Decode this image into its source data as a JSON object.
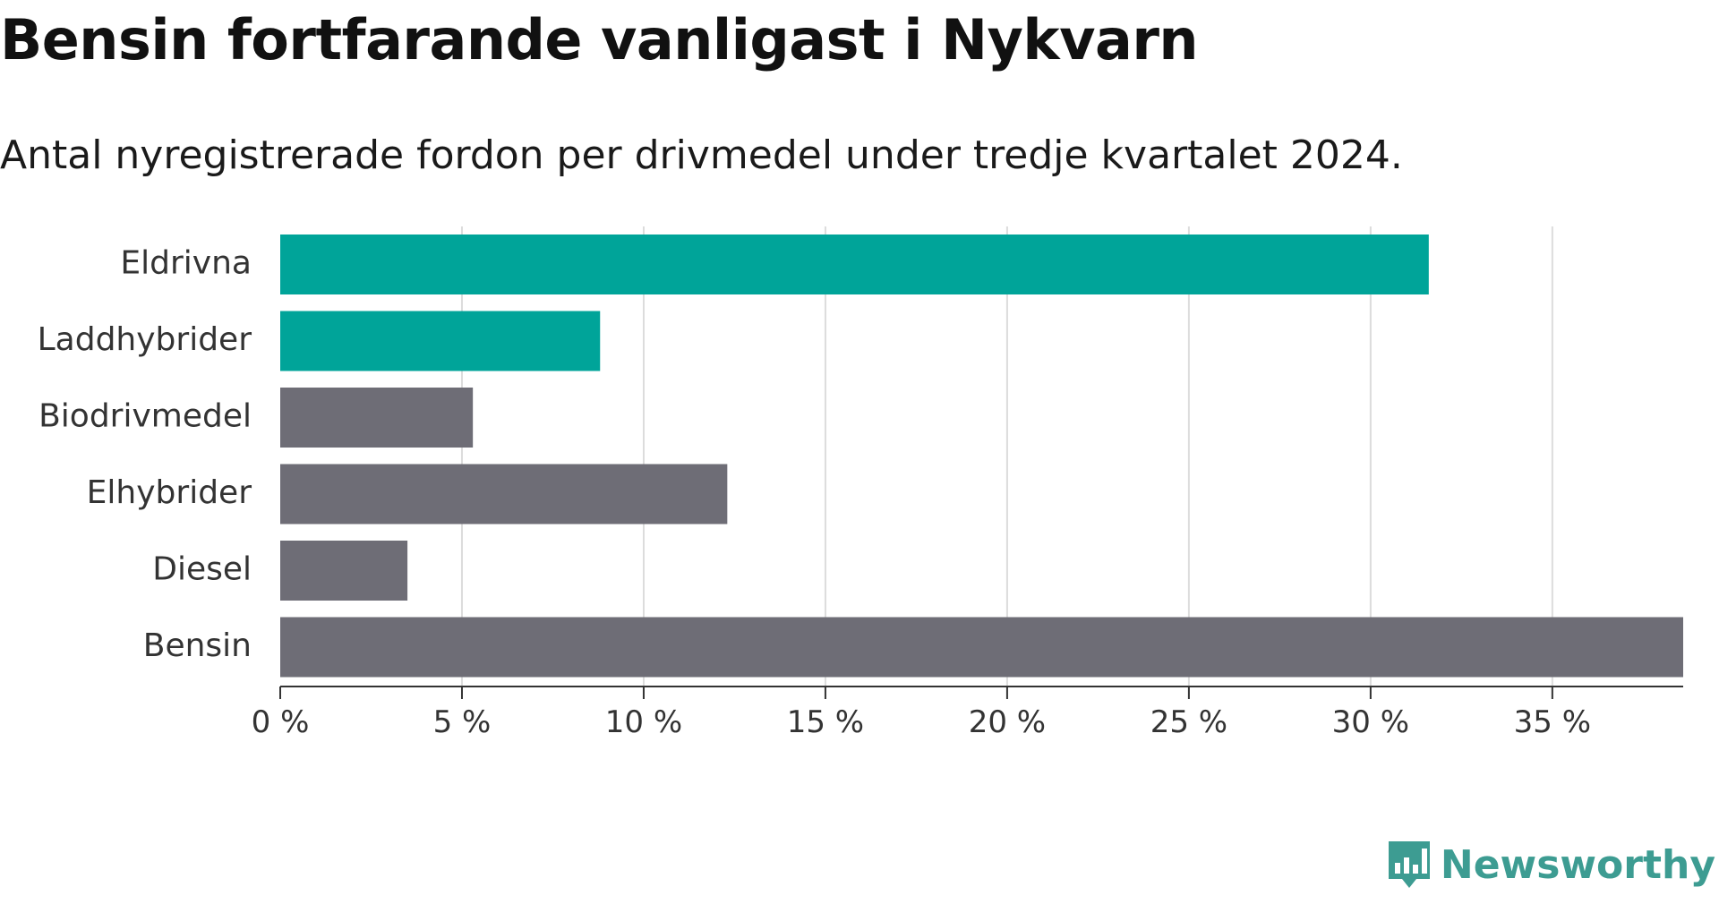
{
  "chart_data": {
    "type": "bar",
    "orientation": "horizontal",
    "title": "Bensin fortfarande vanligast i Nykvarn",
    "subtitle": "Antal nyregistrerade fordon per drivmedel under tredje kvartalet 2024.",
    "categories": [
      "Eldrivna",
      "Laddhybrider",
      "Biodrivmedel",
      "Elhybrider",
      "Diesel",
      "Bensin"
    ],
    "values": [
      31.6,
      8.8,
      5.3,
      12.3,
      3.5,
      38.6
    ],
    "highlighted": [
      true,
      true,
      false,
      false,
      false,
      false
    ],
    "xlabel": "",
    "ylabel": "",
    "xlim": [
      0,
      38.6
    ],
    "x_ticks": [
      0,
      5,
      10,
      15,
      20,
      25,
      30,
      35
    ],
    "x_tick_labels": [
      "0 %",
      "5 %",
      "10 %",
      "15 %",
      "20 %",
      "25 %",
      "30 %",
      "35 %"
    ],
    "grid": true,
    "colors": {
      "highlight": "#00a499",
      "default": "#6e6d76",
      "grid": "#dcdcdc",
      "axis": "#333333"
    }
  },
  "brand": {
    "name": "Newsworthy",
    "color": "#3d9c92",
    "icon": "bar-chart-icon"
  }
}
